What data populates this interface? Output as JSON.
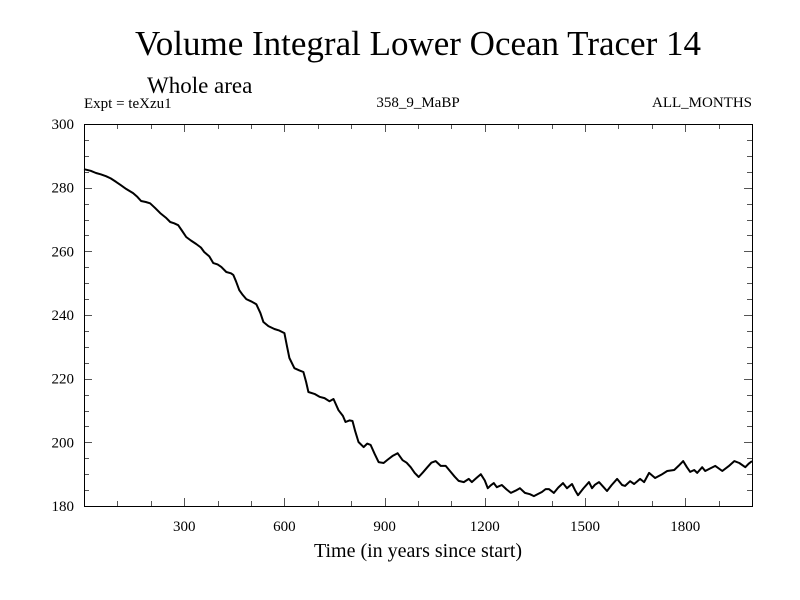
{
  "chart_data": {
    "type": "line",
    "title": "Volume Integral Lower Ocean Tracer 14",
    "subtitle": "Whole area",
    "annotations": {
      "left": "Expt = teXzu1",
      "center": "358_9_MaBP",
      "right": "ALL_MONTHS"
    },
    "xlabel": "Time (in years since start)",
    "ylabel": "",
    "xlim": [
      0,
      2000
    ],
    "ylim": [
      180,
      300
    ],
    "x_major_ticks": [
      300,
      600,
      900,
      1200,
      1500,
      1800
    ],
    "x_tick_labels": [
      "300",
      "600",
      "900",
      "1200",
      "1500",
      "1800"
    ],
    "x_minor_step": 100,
    "y_major_ticks": [
      180,
      200,
      220,
      240,
      260,
      280,
      300
    ],
    "y_tick_labels": [
      "180",
      "200",
      "220",
      "240",
      "260",
      "280",
      "300"
    ],
    "y_minor_step": 5,
    "grid": false,
    "legend": "none",
    "line_color": "#000000",
    "series": [
      {
        "name": "Lower Ocean Tracer 14",
        "x": [
          0,
          20,
          36,
          50,
          66,
          80,
          96,
          110,
          126,
          147,
          160,
          171,
          185,
          198,
          212,
          228,
          245,
          258,
          270,
          282,
          294,
          306,
          320,
          336,
          350,
          360,
          375,
          387,
          400,
          411,
          426,
          440,
          447,
          455,
          465,
          475,
          486,
          500,
          516,
          528,
          537,
          552,
          570,
          585,
          600,
          608,
          615,
          630,
          645,
          657,
          665,
          672,
          690,
          705,
          720,
          735,
          747,
          762,
          775,
          783,
          795,
          804,
          812,
          822,
          837,
          848,
          858,
          870,
          882,
          897,
          910,
          925,
          939,
          954,
          966,
          978,
          990,
          1002,
          1015,
          1028,
          1040,
          1053,
          1068,
          1083,
          1098,
          1110,
          1122,
          1137,
          1152,
          1161,
          1175,
          1188,
          1200,
          1209,
          1218,
          1227,
          1236,
          1251,
          1265,
          1278,
          1292,
          1305,
          1320,
          1335,
          1347,
          1360,
          1371,
          1382,
          1392,
          1407,
          1420,
          1434,
          1446,
          1461,
          1470,
          1479,
          1495,
          1512,
          1521,
          1530,
          1542,
          1555,
          1566,
          1580,
          1596,
          1611,
          1620,
          1635,
          1647,
          1656,
          1665,
          1677,
          1692,
          1710,
          1728,
          1746,
          1767,
          1780,
          1794,
          1805,
          1815,
          1827,
          1836,
          1851,
          1860,
          1875,
          1890,
          1911,
          1930,
          1947,
          1962,
          1980,
          1990,
          2000
        ],
        "y": [
          285.8,
          285.3,
          284.6,
          284.2,
          283.6,
          282.9,
          281.8,
          280.8,
          279.6,
          278.3,
          277.1,
          275.8,
          275.5,
          275.1,
          273.7,
          272.0,
          270.6,
          269.2,
          268.8,
          268.2,
          266.4,
          264.5,
          263.4,
          262.3,
          261.2,
          259.8,
          258.4,
          256.3,
          255.9,
          255.1,
          253.5,
          253.1,
          252.6,
          250.6,
          247.8,
          246.3,
          245.0,
          244.3,
          243.4,
          240.6,
          237.8,
          236.5,
          235.6,
          235.1,
          234.3,
          230.0,
          226.5,
          223.3,
          222.6,
          222.1,
          219.0,
          215.8,
          215.2,
          214.3,
          213.9,
          212.9,
          213.6,
          210.1,
          208.3,
          206.4,
          206.9,
          206.7,
          203.5,
          200.1,
          198.5,
          199.6,
          199.2,
          196.4,
          193.8,
          193.5,
          194.6,
          195.8,
          196.6,
          194.4,
          193.6,
          192.2,
          190.4,
          189.1,
          190.6,
          192.2,
          193.6,
          194.1,
          192.6,
          192.6,
          190.7,
          189.2,
          187.9,
          187.5,
          188.5,
          187.5,
          188.8,
          190.0,
          188.0,
          185.6,
          186.5,
          187.2,
          185.9,
          186.6,
          185.2,
          184.1,
          184.8,
          185.6,
          184.1,
          183.7,
          183.1,
          183.8,
          184.4,
          185.3,
          185.3,
          184.1,
          185.8,
          187.2,
          185.6,
          186.9,
          185.0,
          183.4,
          185.5,
          187.5,
          185.6,
          186.7,
          187.5,
          186.0,
          184.7,
          186.6,
          188.5,
          186.6,
          186.3,
          187.8,
          186.9,
          187.7,
          188.5,
          187.5,
          190.4,
          188.8,
          189.8,
          191.0,
          191.3,
          192.6,
          194.1,
          192.2,
          190.7,
          191.3,
          190.4,
          192.2,
          191.0,
          191.8,
          192.6,
          191.0,
          192.5,
          194.1,
          193.5,
          192.2,
          193.3,
          194.1
        ]
      }
    ]
  }
}
